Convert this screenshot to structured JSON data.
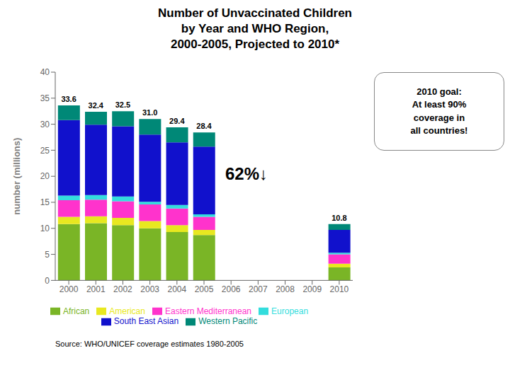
{
  "chart_data": {
    "type": "bar",
    "stacked": true,
    "grid": false,
    "title": "Number of Unvaccinated Children\nby Year and WHO Region,\n2000-2005, Projected to 2010*",
    "y_label": "number (millions)",
    "categories": [
      "2000",
      "2001",
      "2002",
      "2003",
      "2004",
      "2005",
      "2006",
      "2007",
      "2008",
      "2009",
      "2010"
    ],
    "series": [
      {
        "name": "African",
        "color": "#7ab526",
        "values": [
          10.8,
          11.0,
          10.6,
          10.0,
          9.3,
          8.7,
          0,
          0,
          0,
          0,
          2.5
        ]
      },
      {
        "name": "American",
        "color": "#e8e820",
        "values": [
          1.4,
          1.3,
          1.4,
          1.4,
          1.3,
          1.0,
          0,
          0,
          0,
          0,
          0.7
        ]
      },
      {
        "name": "Eastern Mediterranean",
        "color": "#ff33cc",
        "values": [
          3.2,
          3.2,
          3.2,
          3.2,
          3.2,
          2.5,
          0,
          0,
          0,
          0,
          1.8
        ]
      },
      {
        "name": "European",
        "color": "#33dddd",
        "values": [
          0.9,
          0.9,
          0.9,
          0.5,
          0.7,
          0.5,
          0,
          0,
          0,
          0,
          0.3
        ]
      },
      {
        "name": "South East Asian",
        "color": "#1111cc",
        "values": [
          14.5,
          13.5,
          13.5,
          12.9,
          12.0,
          13.0,
          0,
          0,
          0,
          0,
          4.4
        ]
      },
      {
        "name": "Western Pacific",
        "color": "#008877",
        "values": [
          2.8,
          2.5,
          2.9,
          3.0,
          2.9,
          2.7,
          0,
          0,
          0,
          0,
          1.1
        ]
      }
    ],
    "totals": [
      33.6,
      32.4,
      32.5,
      31.0,
      29.4,
      28.4,
      null,
      null,
      null,
      null,
      10.8
    ],
    "totals_labels": [
      "33.6",
      "32.4",
      "32.5",
      "31.0",
      "29.4",
      "28.4",
      null,
      null,
      null,
      null,
      "10.8"
    ],
    "ylim": [
      0,
      40
    ],
    "yticks": [
      0,
      5,
      10,
      15,
      20,
      25,
      30,
      35,
      40
    ],
    "annotations": [
      "62%↓",
      "2010 goal:\nAt least 90%\ncoverage in\nall countries!"
    ],
    "source": "Source: WHO/UNICEF coverage estimates 1980-2005"
  }
}
